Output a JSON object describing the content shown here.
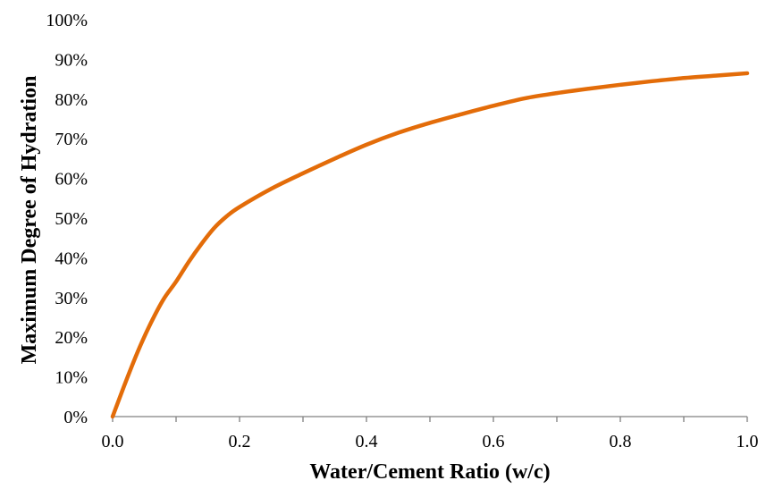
{
  "chart_data": {
    "type": "line",
    "title": "",
    "xlabel": "Water/Cement Ratio (w/c)",
    "ylabel": "Maximum Degree of Hydration",
    "xlim": [
      0,
      1
    ],
    "ylim": [
      0,
      1
    ],
    "x_ticks": [
      "0.0",
      "0.2",
      "0.4",
      "0.6",
      "0.8",
      "1.0"
    ],
    "y_ticks": [
      "0%",
      "10%",
      "20%",
      "30%",
      "40%",
      "50%",
      "60%",
      "70%",
      "80%",
      "90%",
      "100%"
    ],
    "grid": false,
    "legend": "none",
    "series": [
      {
        "color": "#E36C09",
        "x": [
          0.0,
          0.02,
          0.04,
          0.06,
          0.08,
          0.1,
          0.12,
          0.14,
          0.16,
          0.18,
          0.2,
          0.25,
          0.3,
          0.35,
          0.4,
          0.45,
          0.5,
          0.55,
          0.6,
          0.65,
          0.7,
          0.75,
          0.8,
          0.85,
          0.9,
          0.95,
          1.0
        ],
        "y": [
          0.0,
          0.085,
          0.165,
          0.235,
          0.295,
          0.34,
          0.39,
          0.435,
          0.475,
          0.505,
          0.528,
          0.574,
          0.613,
          0.65,
          0.685,
          0.715,
          0.74,
          0.762,
          0.783,
          0.802,
          0.815,
          0.826,
          0.836,
          0.845,
          0.853,
          0.859,
          0.865
        ]
      }
    ]
  }
}
